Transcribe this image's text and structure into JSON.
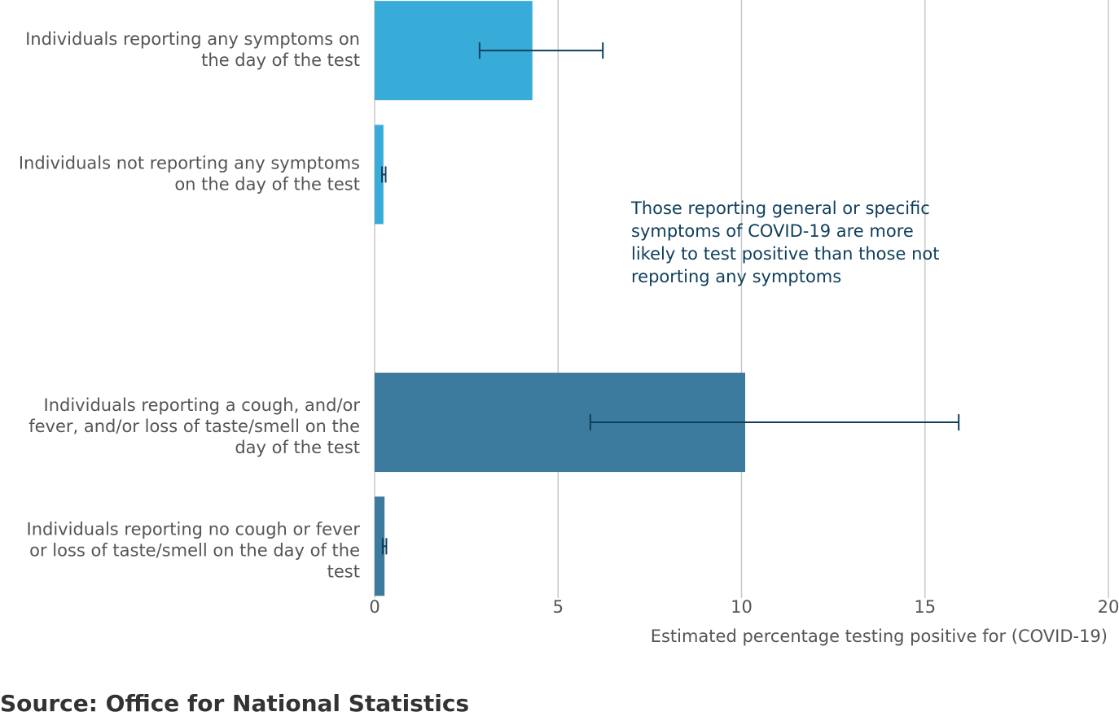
{
  "chart_data": {
    "type": "bar",
    "orientation": "horizontal",
    "categories": [
      [
        "Individuals reporting any symptoms on",
        "the day of the test"
      ],
      [
        "Individuals not reporting any symptoms",
        "on the day of the test"
      ],
      null,
      [
        "Individuals reporting a cough, and/or",
        "fever, and/or loss of taste/smell on the",
        "day of the test"
      ],
      [
        "Individuals reporting no cough or fever",
        "or loss of taste/smell on the day of the",
        "test"
      ]
    ],
    "values": [
      4.3,
      0.24,
      null,
      10.1,
      0.27
    ],
    "ci_lower": [
      2.86,
      0.2,
      null,
      5.88,
      0.22
    ],
    "ci_upper": [
      6.22,
      0.3,
      null,
      15.92,
      0.32
    ],
    "colors": [
      "#38acd9",
      "#38acd9",
      null,
      "#3c7a9e",
      "#3c7a9e"
    ],
    "error_color": "#0f3f5c",
    "xlim": [
      0,
      20
    ],
    "xticks": [
      0,
      5,
      10,
      15,
      20
    ],
    "grid": true,
    "xlabel": "Estimated percentage testing positive for (COVID-19)",
    "annotation": [
      "Those reporting general or specific",
      "symptoms of COVID-19 are more",
      "likely to test positive than those not",
      "reporting any symptoms"
    ],
    "source": "Source: Office for National Statistics"
  }
}
